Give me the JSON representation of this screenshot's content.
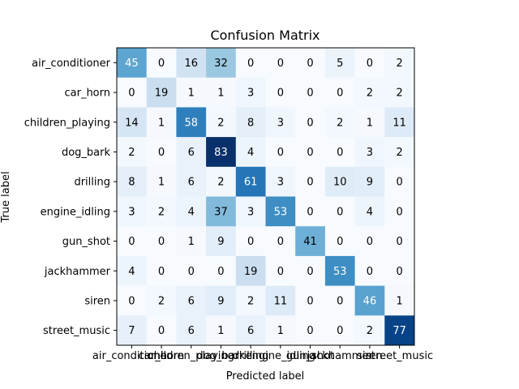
{
  "chart_data": {
    "type": "heatmap",
    "title": "Confusion Matrix",
    "xlabel": "Predicted label",
    "ylabel": "True label",
    "colormap": "Blues",
    "labels": [
      "air_conditioner",
      "car_horn",
      "children_playing",
      "dog_bark",
      "drilling",
      "engine_idling",
      "gun_shot",
      "jackhammer",
      "siren",
      "street_music"
    ],
    "matrix": [
      [
        45,
        0,
        16,
        32,
        0,
        0,
        0,
        5,
        0,
        2
      ],
      [
        0,
        19,
        1,
        1,
        3,
        0,
        0,
        0,
        2,
        2
      ],
      [
        14,
        1,
        58,
        2,
        8,
        3,
        0,
        2,
        1,
        11
      ],
      [
        2,
        0,
        6,
        83,
        4,
        0,
        0,
        0,
        3,
        2
      ],
      [
        8,
        1,
        6,
        2,
        61,
        3,
        0,
        10,
        9,
        0
      ],
      [
        3,
        2,
        4,
        37,
        3,
        53,
        0,
        0,
        4,
        0
      ],
      [
        0,
        0,
        1,
        9,
        0,
        0,
        41,
        0,
        0,
        0
      ],
      [
        4,
        0,
        0,
        0,
        19,
        0,
        0,
        53,
        0,
        0
      ],
      [
        0,
        2,
        6,
        9,
        2,
        11,
        0,
        0,
        46,
        1
      ],
      [
        7,
        0,
        6,
        1,
        6,
        1,
        0,
        0,
        2,
        77
      ]
    ],
    "value_range": [
      0,
      83
    ],
    "colors": {
      "low": "#f7fbff",
      "high": "#08306b",
      "text_dark": "#000000",
      "text_light": "#ffffff"
    }
  }
}
